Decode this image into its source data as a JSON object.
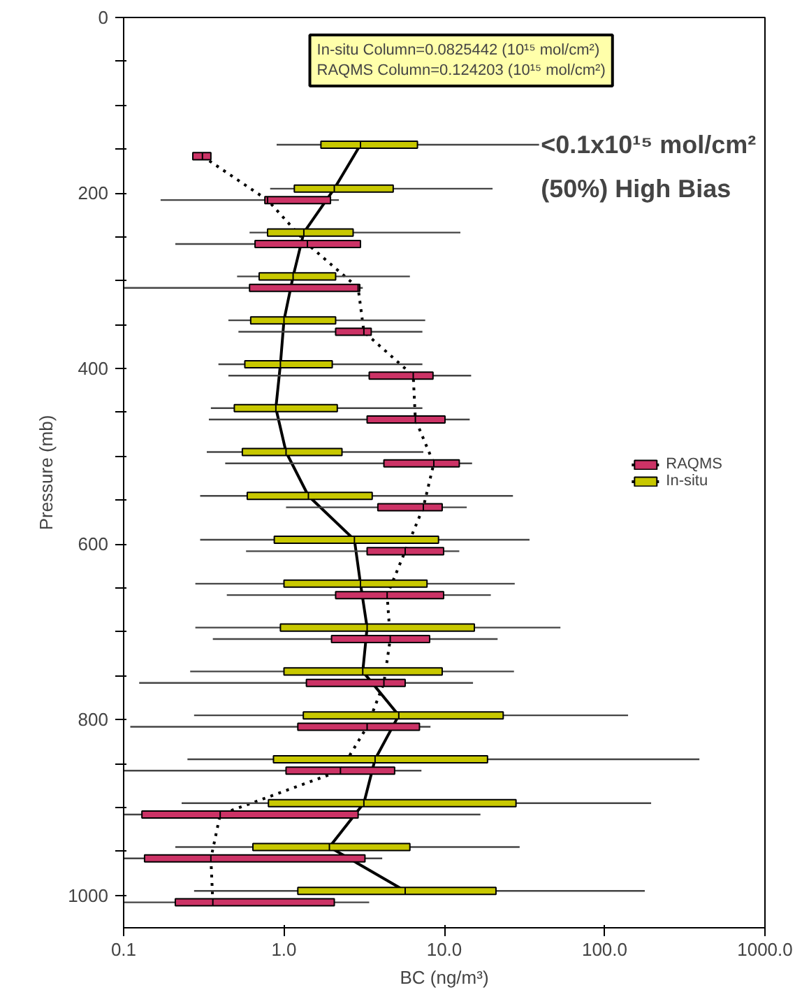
{
  "chart_data": {
    "type": "box",
    "orientation": "horizontal",
    "xlabel": "BC (ng/m³)",
    "ylabel": "Pressure (mb)",
    "log": "x",
    "grid": false,
    "legend": "right",
    "xlim": [
      0.1,
      1000
    ],
    "xticks": [
      {
        "value": 0.1,
        "label": "0.1"
      },
      {
        "value": 1,
        "label": "1.0"
      },
      {
        "value": 10,
        "label": "10.0"
      },
      {
        "value": 100,
        "label": "100.0"
      },
      {
        "value": 1000,
        "label": "1000.0"
      }
    ],
    "ylim": [
      1037,
      0
    ],
    "yticks": [
      0,
      {
        "value": 50,
        "label": null
      },
      {
        "value": 100,
        "label": null
      },
      {
        "value": 150,
        "label": null
      },
      200,
      {
        "value": 250,
        "label": null
      },
      {
        "value": 300,
        "label": null
      },
      {
        "value": 350,
        "label": null
      },
      400,
      {
        "value": 450,
        "label": null
      },
      {
        "value": 500,
        "label": null
      },
      {
        "value": 550,
        "label": null
      },
      600,
      {
        "value": 650,
        "label": null
      },
      {
        "value": 700,
        "label": null
      },
      {
        "value": 750,
        "label": null
      },
      800,
      {
        "value": 850,
        "label": null
      },
      {
        "value": 900,
        "label": null
      },
      {
        "value": 950,
        "label": null
      },
      1000
    ],
    "annotations": [
      "In-situ Column=0.0825442 (10¹⁵ mol/cm²)",
      "RAQMS Column=0.124203 (10¹⁵ mol/cm²)",
      "<0.1x10¹⁵ mol/cm²",
      "(50%) High Bias"
    ],
    "series": [
      {
        "type": "line",
        "color": "#000000",
        "line_style": "dotted",
        "x": [
          158,
          208,
          258,
          308,
          358,
          408,
          458,
          508,
          558,
          608,
          658,
          708,
          758,
          808,
          858,
          908,
          958,
          1008
        ],
        "values": [
          0.31,
          0.79,
          1.4,
          2.9,
          3.15,
          6.4,
          6.6,
          8.6,
          7.4,
          5.7,
          4.4,
          4.6,
          4.2,
          3.3,
          2.25,
          0.4,
          0.35,
          0.36
        ]
      },
      {
        "type": "line",
        "color": "#000000",
        "line_style": "solid",
        "x": [
          145,
          195,
          245,
          295,
          345,
          395,
          445,
          495,
          545,
          595,
          645,
          695,
          745,
          795,
          845,
          895,
          945,
          995
        ],
        "values": [
          3.0,
          2.06,
          1.33,
          1.14,
          1.0,
          0.95,
          0.89,
          1.03,
          1.42,
          2.75,
          3.0,
          3.3,
          3.1,
          5.2,
          3.7,
          3.15,
          1.92,
          5.7
        ]
      },
      {
        "name": "RAQMS",
        "color": "#cc3366",
        "x": [
          158,
          208,
          258,
          308,
          358,
          408,
          458,
          508,
          558,
          608,
          658,
          708,
          758,
          808,
          858,
          908,
          958,
          1008
        ],
        "boxes": [
          {
            "low": 0.27,
            "q1": 0.27,
            "median": 0.31,
            "q3": 0.35,
            "high": 0.35
          },
          {
            "low": 0.17,
            "q1": 0.76,
            "median": 0.79,
            "q3": 1.95,
            "high": 2.2
          },
          {
            "low": 0.21,
            "q1": 0.66,
            "median": 1.4,
            "q3": 3.0,
            "high": 3.0
          },
          {
            "low": null,
            "q1": 0.61,
            "median": 2.9,
            "q3": 2.97,
            "high": 3.1
          },
          {
            "low": 0.52,
            "q1": 2.1,
            "median": 3.15,
            "q3": 3.5,
            "high": 7.3
          },
          {
            "low": 0.45,
            "q1": 3.4,
            "median": 6.4,
            "q3": 8.5,
            "high": 14.7
          },
          {
            "low": 0.34,
            "q1": 3.3,
            "median": 6.6,
            "q3": 10.1,
            "high": 14.4
          },
          {
            "low": 0.43,
            "q1": 4.2,
            "median": 8.6,
            "q3": 12.4,
            "high": 14.9
          },
          {
            "low": 1.03,
            "q1": 3.85,
            "median": 7.4,
            "q3": 9.7,
            "high": 13.8
          },
          {
            "low": 0.58,
            "q1": 3.3,
            "median": 5.7,
            "q3": 9.9,
            "high": 12.4
          },
          {
            "low": 0.44,
            "q1": 2.1,
            "median": 4.4,
            "q3": 9.9,
            "high": 19.5
          },
          {
            "low": 0.36,
            "q1": 1.98,
            "median": 4.6,
            "q3": 8.1,
            "high": 21.5
          },
          {
            "low": 0.125,
            "q1": 1.38,
            "median": 4.2,
            "q3": 5.7,
            "high": 15.1
          },
          {
            "low": 0.11,
            "q1": 1.22,
            "median": 3.3,
            "q3": 7.0,
            "high": 8.2
          },
          {
            "low": null,
            "q1": 1.03,
            "median": 2.25,
            "q3": 4.9,
            "high": 7.2
          },
          {
            "low": null,
            "q1": 0.13,
            "median": 0.4,
            "q3": 2.9,
            "high": 16.8
          },
          {
            "low": null,
            "q1": 0.135,
            "median": 0.35,
            "q3": 3.2,
            "high": 4.1
          },
          {
            "low": null,
            "q1": 0.21,
            "median": 0.36,
            "q3": 2.06,
            "high": 3.4
          }
        ]
      },
      {
        "name": "In-situ",
        "color": "#c8c800",
        "x": [
          145,
          195,
          245,
          295,
          345,
          395,
          445,
          495,
          545,
          595,
          645,
          695,
          745,
          795,
          845,
          895,
          945,
          995
        ],
        "boxes": [
          {
            "low": 0.9,
            "q1": 1.7,
            "median": 3.0,
            "q3": 6.8,
            "high": 39
          },
          {
            "low": 0.82,
            "q1": 1.16,
            "median": 2.06,
            "q3": 4.8,
            "high": 20
          },
          {
            "low": 0.61,
            "q1": 0.79,
            "median": 1.33,
            "q3": 2.7,
            "high": 12.6
          },
          {
            "low": 0.51,
            "q1": 0.7,
            "median": 1.14,
            "q3": 2.1,
            "high": 6.1
          },
          {
            "low": 0.45,
            "q1": 0.62,
            "median": 1.0,
            "q3": 2.1,
            "high": 7.6
          },
          {
            "low": 0.39,
            "q1": 0.57,
            "median": 0.95,
            "q3": 2.0,
            "high": 7.3
          },
          {
            "low": 0.35,
            "q1": 0.49,
            "median": 0.89,
            "q3": 2.15,
            "high": 7.3
          },
          {
            "low": 0.33,
            "q1": 0.55,
            "median": 1.03,
            "q3": 2.3,
            "high": 7.4
          },
          {
            "low": 0.3,
            "q1": 0.59,
            "median": 1.42,
            "q3": 3.55,
            "high": 26.8
          },
          {
            "low": 0.3,
            "q1": 0.87,
            "median": 2.75,
            "q3": 9.2,
            "high": 34
          },
          {
            "low": 0.28,
            "q1": 1.0,
            "median": 3.0,
            "q3": 7.8,
            "high": 27.5
          },
          {
            "low": 0.28,
            "q1": 0.95,
            "median": 3.3,
            "q3": 15.4,
            "high": 53
          },
          {
            "low": 0.26,
            "q1": 1.0,
            "median": 3.1,
            "q3": 9.7,
            "high": 27.2
          },
          {
            "low": 0.275,
            "q1": 1.32,
            "median": 5.2,
            "q3": 23.3,
            "high": 140
          },
          {
            "low": 0.25,
            "q1": 0.86,
            "median": 3.7,
            "q3": 18.6,
            "high": 390
          },
          {
            "low": 0.23,
            "q1": 0.8,
            "median": 3.15,
            "q3": 28,
            "high": 195
          },
          {
            "low": 0.21,
            "q1": 0.64,
            "median": 1.92,
            "q3": 6.1,
            "high": 29.5
          },
          {
            "low": 0.275,
            "q1": 1.22,
            "median": 5.7,
            "q3": 21,
            "high": 178
          }
        ]
      }
    ]
  }
}
